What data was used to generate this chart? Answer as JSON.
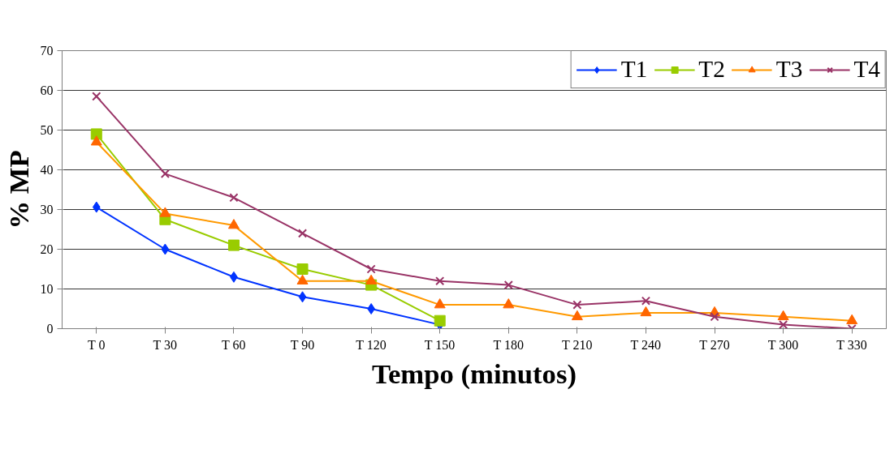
{
  "chart_data": {
    "type": "line",
    "xlabel": "Tempo (minutos)",
    "ylabel": "% MP",
    "categories": [
      "T 0",
      "T 30",
      "T 60",
      "T 90",
      "T 120",
      "T 150",
      "T 180",
      "T 210",
      "T 240",
      "T 270",
      "T 300",
      "T 330"
    ],
    "series": [
      {
        "name": "T1",
        "color": "#0033ff",
        "marker": "diamond",
        "values": [
          30.6,
          20,
          13,
          8,
          5,
          1,
          null,
          null,
          null,
          null,
          null,
          null
        ]
      },
      {
        "name": "T2",
        "color": "#99cc00",
        "marker": "square",
        "values": [
          49,
          27.5,
          21,
          15,
          11,
          2,
          null,
          null,
          null,
          null,
          null,
          null
        ]
      },
      {
        "name": "T3",
        "color": "#ff9900",
        "marker": "triangle",
        "values": [
          47,
          29,
          26,
          12,
          12,
          6,
          6,
          3,
          4,
          4,
          3,
          2
        ]
      },
      {
        "name": "T4",
        "color": "#993366",
        "marker": "cross",
        "values": [
          58.5,
          39,
          33,
          24,
          15,
          12,
          11,
          6,
          7,
          3,
          1,
          0
        ]
      }
    ],
    "ylim": [
      0,
      70
    ],
    "yticks": [
      0,
      10,
      20,
      30,
      40,
      50,
      60,
      70
    ],
    "grid": "y",
    "legend": "top right",
    "line_style": "solid"
  }
}
